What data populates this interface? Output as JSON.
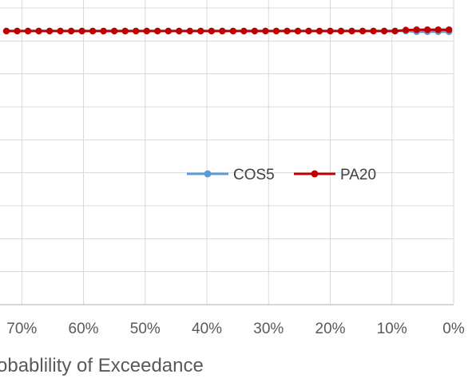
{
  "chart_data": {
    "type": "line",
    "title": "",
    "xlabel": "obablility of Exceedance",
    "ylabel": "",
    "x_tick_labels": [
      "70%",
      "60%",
      "50%",
      "40%",
      "30%",
      "20%",
      "10%",
      "0%"
    ],
    "x_ticks": [
      70,
      60,
      50,
      40,
      30,
      20,
      10,
      0
    ],
    "xlim": [
      72.5,
      0
    ],
    "ylim": [
      0,
      9
    ],
    "grid": true,
    "legend_position": "center-right",
    "series": [
      {
        "name": "COS5",
        "color": "#5B9BD5",
        "x": [
          72.5,
          70.75,
          69,
          67.25,
          65.5,
          63.75,
          62,
          60.25,
          58.5,
          56.75,
          55,
          53.25,
          51.5,
          49.75,
          48,
          46.25,
          44.5,
          42.75,
          41,
          39.25,
          37.5,
          35.75,
          34,
          32.25,
          30.5,
          28.75,
          27,
          25.25,
          23.5,
          21.75,
          20,
          18.25,
          16.5,
          14.75,
          13,
          11.25,
          9.5,
          7.75,
          6,
          4.25,
          2.5,
          0.75
        ],
        "y": [
          8.3,
          8.3,
          8.3,
          8.3,
          8.3,
          8.3,
          8.3,
          8.3,
          8.3,
          8.3,
          8.3,
          8.3,
          8.3,
          8.3,
          8.3,
          8.3,
          8.3,
          8.3,
          8.3,
          8.3,
          8.3,
          8.3,
          8.3,
          8.3,
          8.3,
          8.3,
          8.3,
          8.3,
          8.3,
          8.3,
          8.3,
          8.3,
          8.3,
          8.3,
          8.3,
          8.3,
          8.3,
          8.3,
          8.28,
          8.28,
          8.28,
          8.28
        ]
      },
      {
        "name": "PA20",
        "color": "#C00000",
        "x": [
          72.5,
          70.75,
          69,
          67.25,
          65.5,
          63.75,
          62,
          60.25,
          58.5,
          56.75,
          55,
          53.25,
          51.5,
          49.75,
          48,
          46.25,
          44.5,
          42.75,
          41,
          39.25,
          37.5,
          35.75,
          34,
          32.25,
          30.5,
          28.75,
          27,
          25.25,
          23.5,
          21.75,
          20,
          18.25,
          16.5,
          14.75,
          13,
          11.25,
          9.5,
          7.75,
          6,
          4.25,
          2.5,
          0.75
        ],
        "y": [
          8.3,
          8.3,
          8.3,
          8.3,
          8.3,
          8.3,
          8.3,
          8.3,
          8.3,
          8.3,
          8.3,
          8.3,
          8.3,
          8.3,
          8.3,
          8.3,
          8.3,
          8.3,
          8.3,
          8.3,
          8.3,
          8.3,
          8.3,
          8.3,
          8.3,
          8.3,
          8.3,
          8.3,
          8.3,
          8.3,
          8.3,
          8.3,
          8.3,
          8.3,
          8.3,
          8.3,
          8.3,
          8.33,
          8.34,
          8.34,
          8.34,
          8.34
        ]
      }
    ]
  }
}
